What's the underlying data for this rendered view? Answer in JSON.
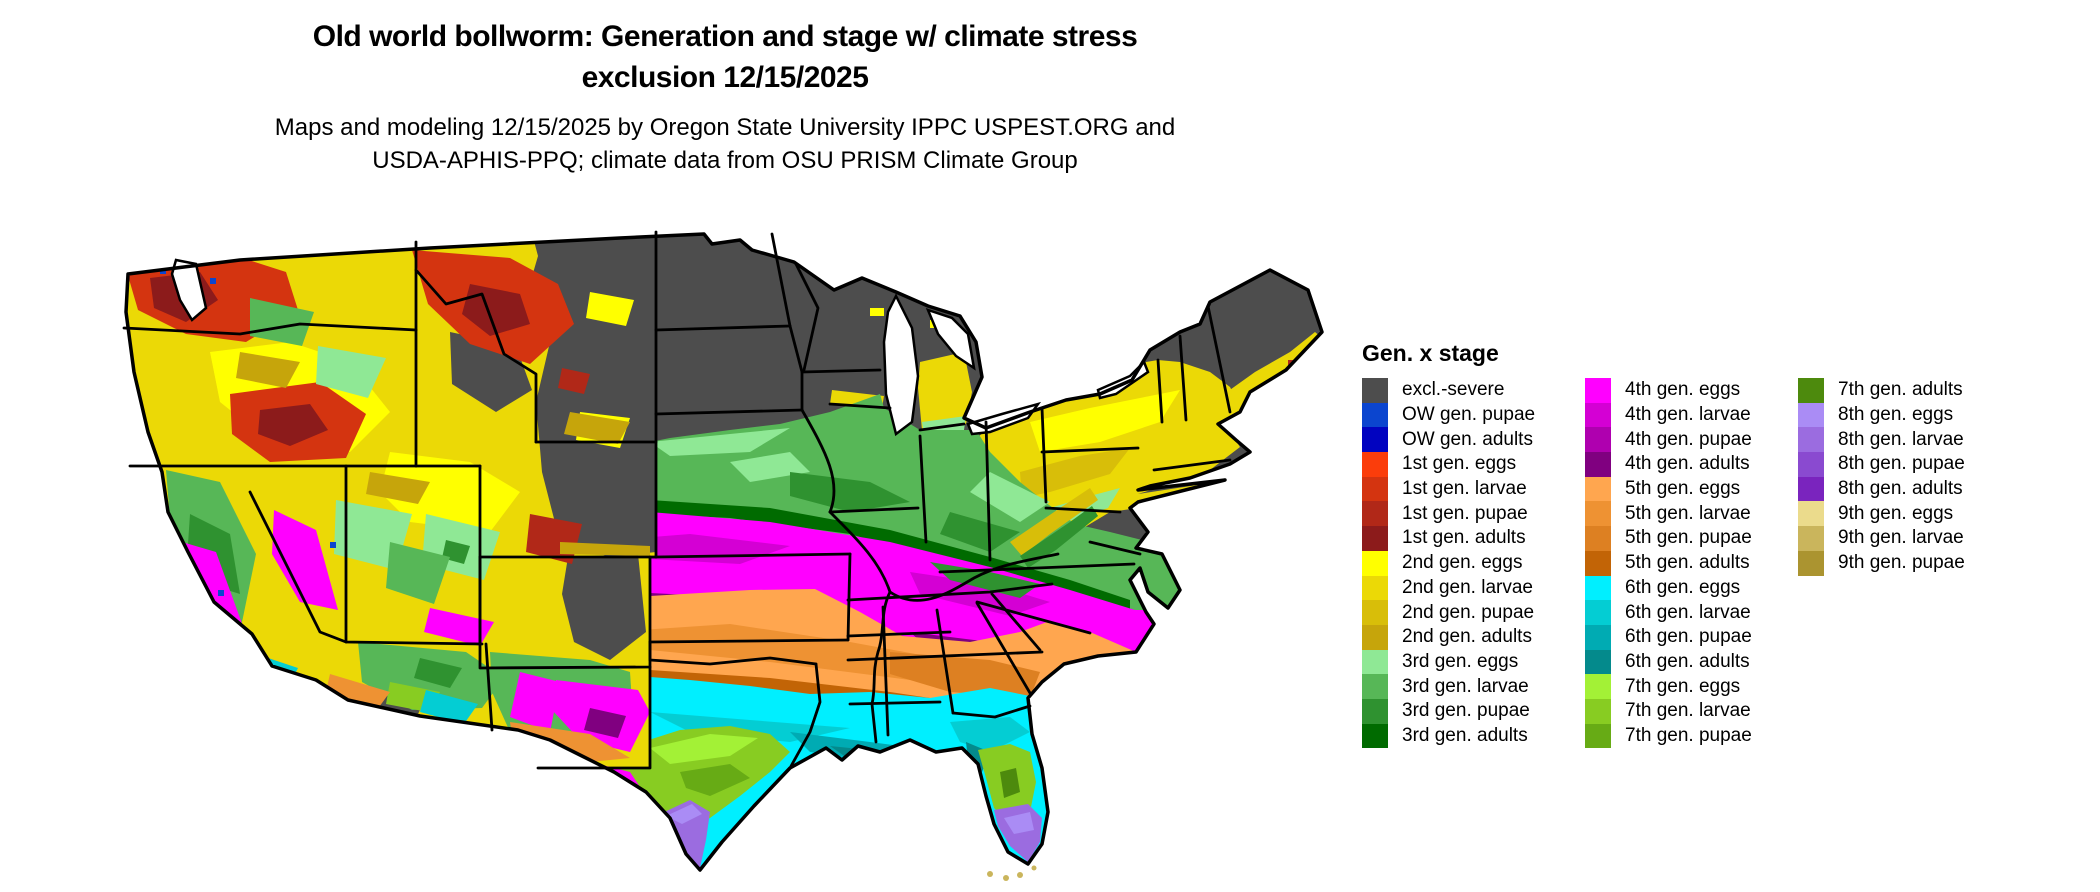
{
  "header": {
    "title_line1": "Old world bollworm: Generation and stage w/ climate stress",
    "title_line2": "exclusion 12/15/2025",
    "subtitle_line1": "Maps and modeling 12/15/2025 by Oregon State University IPPC USPEST.ORG and",
    "subtitle_line2": "USDA-APHIS-PPQ; climate data from OSU PRISM Climate Group"
  },
  "legend": {
    "title": "Gen. x stage",
    "columns": [
      [
        {
          "label": "excl.-severe",
          "key": "excl_severe"
        },
        {
          "label": "OW gen. pupae",
          "key": "ow_pupae"
        },
        {
          "label": "OW gen. adults",
          "key": "ow_adults"
        },
        {
          "label": "1st gen. eggs",
          "key": "g1_eggs"
        },
        {
          "label": "1st gen. larvae",
          "key": "g1_larvae"
        },
        {
          "label": "1st gen. pupae",
          "key": "g1_pupae"
        },
        {
          "label": "1st gen. adults",
          "key": "g1_adults"
        },
        {
          "label": "2nd gen. eggs",
          "key": "g2_eggs"
        },
        {
          "label": "2nd gen. larvae",
          "key": "g2_larvae"
        },
        {
          "label": "2nd gen. pupae",
          "key": "g2_pupae"
        },
        {
          "label": "2nd gen. adults",
          "key": "g2_adults"
        },
        {
          "label": "3rd gen. eggs",
          "key": "g3_eggs"
        },
        {
          "label": "3rd gen. larvae",
          "key": "g3_larvae"
        },
        {
          "label": "3rd gen. pupae",
          "key": "g3_pupae"
        },
        {
          "label": "3rd gen. adults",
          "key": "g3_adults"
        }
      ],
      [
        {
          "label": "4th gen. eggs",
          "key": "g4_eggs"
        },
        {
          "label": "4th gen. larvae",
          "key": "g4_larvae"
        },
        {
          "label": "4th gen. pupae",
          "key": "g4_pupae"
        },
        {
          "label": "4th gen. adults",
          "key": "g4_adults"
        },
        {
          "label": "5th gen. eggs",
          "key": "g5_eggs"
        },
        {
          "label": "5th gen. larvae",
          "key": "g5_larvae"
        },
        {
          "label": "5th gen. pupae",
          "key": "g5_pupae"
        },
        {
          "label": "5th gen. adults",
          "key": "g5_adults"
        },
        {
          "label": "6th gen. eggs",
          "key": "g6_eggs"
        },
        {
          "label": "6th gen. larvae",
          "key": "g6_larvae"
        },
        {
          "label": "6th gen. pupae",
          "key": "g6_pupae"
        },
        {
          "label": "6th gen. adults",
          "key": "g6_adults"
        },
        {
          "label": "7th gen. eggs",
          "key": "g7_eggs"
        },
        {
          "label": "7th gen. larvae",
          "key": "g7_larvae"
        },
        {
          "label": "7th gen. pupae",
          "key": "g7_pupae"
        }
      ],
      [
        {
          "label": "7th gen. adults",
          "key": "g7_adults"
        },
        {
          "label": "8th gen. eggs",
          "key": "g8_eggs"
        },
        {
          "label": "8th gen. larvae",
          "key": "g8_larvae"
        },
        {
          "label": "8th gen. pupae",
          "key": "g8_pupae"
        },
        {
          "label": "8th gen. adults",
          "key": "g8_adults"
        },
        {
          "label": "9th gen. eggs",
          "key": "g9_eggs"
        },
        {
          "label": "9th gen. larvae",
          "key": "g9_larvae"
        },
        {
          "label": "9th gen. pupae",
          "key": "g9_pupae"
        }
      ]
    ]
  },
  "colors": {
    "excl_severe": "#4D4D4D",
    "ow_pupae": "#0B45CF",
    "ow_adults": "#0103C0",
    "g1_eggs": "#FB3D0B",
    "g1_larvae": "#D43410",
    "g1_pupae": "#B12818",
    "g1_adults": "#8C1B1B",
    "g2_eggs": "#FFFF00",
    "g2_larvae": "#EBD906",
    "g2_pupae": "#D8BE09",
    "g2_adults": "#C6A50B",
    "g3_eggs": "#8FE895",
    "g3_larvae": "#57B757",
    "g3_pupae": "#2F9230",
    "g3_adults": "#006B00",
    "g4_eggs": "#FF00FF",
    "g4_larvae": "#D400D4",
    "g4_pupae": "#AF00AF",
    "g4_adults": "#800080",
    "g5_eggs": "#FFA64F",
    "g5_larvae": "#EE9233",
    "g5_pupae": "#DD8022",
    "g5_adults": "#C26406",
    "g6_eggs": "#00EFFF",
    "g6_larvae": "#04CDD3",
    "g6_pupae": "#00ABB3",
    "g6_adults": "#048A8C",
    "g7_eggs": "#A3F136",
    "g7_larvae": "#88CC22",
    "g7_pupae": "#67AB15",
    "g7_adults": "#4D8A0D",
    "g8_eggs": "#AA8CF5",
    "g8_larvae": "#9B6CE0",
    "g8_pupae": "#8A4AD0",
    "g8_adults": "#7A24BE",
    "g9_eggs": "#EBDB8C",
    "g9_larvae": "#CAB55C",
    "g9_pupae": "#AB9430",
    "water": "#FFFFFF",
    "border": "#000000"
  },
  "map": {
    "bands_north_to_south": [
      "excl_severe",
      "g2_eggs",
      "g3_larvae",
      "g4_eggs",
      "g5_eggs",
      "g6_eggs",
      "g7_larvae",
      "g8_larvae"
    ],
    "west_mosaic_keys": [
      "g2_eggs",
      "g2_larvae",
      "g1_larvae",
      "g1_pupae",
      "g3_eggs",
      "g3_larvae",
      "g4_eggs",
      "g5_larvae",
      "g6_larvae",
      "excl_severe",
      "ow_pupae"
    ],
    "florida_keys_color": "g9_larvae"
  }
}
